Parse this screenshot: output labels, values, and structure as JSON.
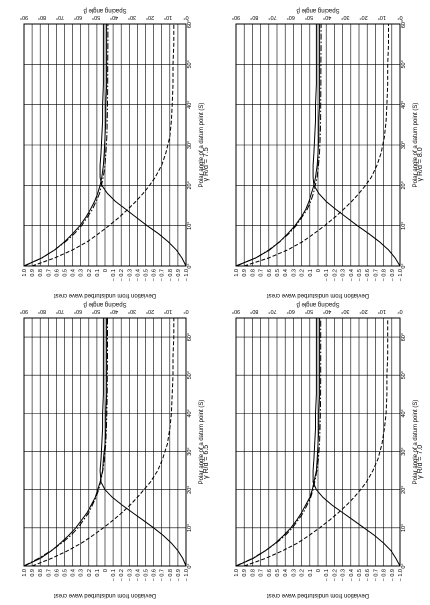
{
  "figure": {
    "y_axis_label": "Deviation from undisturbed wave crest",
    "x_axis_label": "Polar angle of a datum point (S)",
    "y2_axis_label": "Spacing angle β",
    "y_ticks": [
      "1.0",
      "0.9",
      "0.8",
      "0.7",
      "0.6",
      "0.5",
      "0.4",
      "0.3",
      "0.2",
      "0.1",
      "0",
      "− 0.1",
      "− 0.2",
      "− 0.3",
      "− 0.4",
      "− 0.5",
      "− 0.6",
      "− 0.7",
      "− 0.8",
      "− 0.9",
      "− 1.0"
    ],
    "x_ticks": [
      "0°",
      "10°",
      "20°",
      "30°",
      "40°",
      "50°",
      "60°"
    ],
    "y2_ticks": [
      "0°",
      "10°",
      "20°",
      "30°",
      "40°",
      "50°",
      "60°",
      "70°",
      "80°",
      "90°"
    ]
  },
  "chart_data": [
    {
      "type": "line",
      "panel_title": "γ R/d = 7.5",
      "x": [
        0,
        2,
        4,
        6,
        8,
        10,
        12,
        14,
        16,
        18,
        20,
        22,
        25,
        28,
        32,
        36,
        40,
        45,
        50,
        55,
        60
      ],
      "xlim": [
        0,
        60
      ],
      "ylim": [
        -1.0,
        1.0
      ],
      "y2lim": [
        0,
        90
      ],
      "series": [
        {
          "style": "solid",
          "values": [
            1.0,
            0.78,
            0.62,
            0.5,
            0.4,
            0.31,
            0.24,
            0.18,
            0.13,
            0.09,
            0.06,
            0.04,
            0.02,
            0.01,
            0.0,
            -0.01,
            -0.01,
            -0.02,
            -0.02,
            -0.02,
            -0.02
          ]
        },
        {
          "style": "dashed",
          "values": [
            0.9,
            0.62,
            0.4,
            0.22,
            0.08,
            -0.05,
            -0.17,
            -0.28,
            -0.38,
            -0.47,
            -0.55,
            -0.62,
            -0.7,
            -0.75,
            -0.8,
            -0.82,
            -0.83,
            -0.84,
            -0.84,
            -0.85,
            -0.85
          ]
        },
        {
          "style": "solid",
          "values": [
            -1.0,
            -0.95,
            -0.88,
            -0.78,
            -0.66,
            -0.52,
            -0.39,
            -0.26,
            -0.13,
            -0.03,
            0.04,
            0.06,
            0.06,
            0.05,
            0.04,
            0.03,
            0.03,
            0.02,
            0.02,
            0.02,
            0.02
          ]
        },
        {
          "style": "dash-dot",
          "axis": "y2",
          "values": [
            90,
            80,
            73,
            67,
            62,
            58,
            55,
            52,
            50,
            48,
            47,
            46,
            45,
            44.5,
            44,
            43.8,
            43.6,
            43.5,
            43.5,
            43.4,
            43.4
          ]
        }
      ]
    },
    {
      "type": "line",
      "panel_title": "γ R/d = 8.0",
      "x": [
        0,
        2,
        4,
        6,
        8,
        10,
        12,
        14,
        16,
        18,
        20,
        22,
        25,
        28,
        32,
        36,
        40,
        45,
        50,
        55,
        60
      ],
      "xlim": [
        0,
        60
      ],
      "ylim": [
        -1.0,
        1.0
      ],
      "y2lim": [
        0,
        90
      ],
      "series": [
        {
          "style": "solid",
          "values": [
            1.0,
            0.76,
            0.59,
            0.47,
            0.37,
            0.28,
            0.21,
            0.15,
            0.11,
            0.08,
            0.05,
            0.03,
            0.01,
            0.0,
            -0.01,
            -0.01,
            -0.02,
            -0.02,
            -0.02,
            -0.02,
            -0.02
          ]
        },
        {
          "style": "dashed",
          "values": [
            0.9,
            0.6,
            0.37,
            0.19,
            0.05,
            -0.08,
            -0.2,
            -0.31,
            -0.41,
            -0.5,
            -0.58,
            -0.65,
            -0.72,
            -0.77,
            -0.81,
            -0.83,
            -0.84,
            -0.85,
            -0.85,
            -0.86,
            -0.86
          ]
        },
        {
          "style": "solid",
          "values": [
            -1.0,
            -0.94,
            -0.86,
            -0.75,
            -0.62,
            -0.48,
            -0.35,
            -0.22,
            -0.1,
            -0.01,
            0.05,
            0.06,
            0.06,
            0.05,
            0.04,
            0.03,
            0.03,
            0.02,
            0.02,
            0.02,
            0.02
          ]
        },
        {
          "style": "dash-dot",
          "axis": "y2",
          "values": [
            90,
            79,
            72,
            66,
            61,
            57,
            54,
            51,
            49,
            47.5,
            46.5,
            45.5,
            44.7,
            44.2,
            43.8,
            43.6,
            43.5,
            43.4,
            43.4,
            43.3,
            43.3
          ]
        }
      ]
    },
    {
      "type": "line",
      "panel_title": "γ R/d = 6.5",
      "x": [
        0,
        2,
        4,
        6,
        8,
        10,
        12,
        14,
        16,
        18,
        20,
        22,
        25,
        28,
        32,
        36,
        40,
        45,
        50,
        55,
        60,
        65
      ],
      "xlim": [
        0,
        65
      ],
      "ylim": [
        -1.0,
        1.0
      ],
      "y2lim": [
        0,
        90
      ],
      "series": [
        {
          "style": "solid",
          "values": [
            1.0,
            0.8,
            0.66,
            0.55,
            0.45,
            0.36,
            0.29,
            0.22,
            0.17,
            0.12,
            0.09,
            0.06,
            0.03,
            0.02,
            0.0,
            -0.01,
            -0.01,
            -0.02,
            -0.02,
            -0.02,
            -0.02,
            -0.02
          ]
        },
        {
          "style": "dashed",
          "values": [
            0.9,
            0.66,
            0.46,
            0.29,
            0.15,
            0.02,
            -0.1,
            -0.21,
            -0.31,
            -0.4,
            -0.48,
            -0.56,
            -0.65,
            -0.71,
            -0.77,
            -0.8,
            -0.82,
            -0.83,
            -0.84,
            -0.84,
            -0.85,
            -0.85
          ]
        },
        {
          "style": "solid",
          "values": [
            -1.0,
            -0.96,
            -0.9,
            -0.82,
            -0.72,
            -0.6,
            -0.47,
            -0.34,
            -0.21,
            -0.09,
            0.0,
            0.05,
            0.06,
            0.05,
            0.04,
            0.03,
            0.03,
            0.02,
            0.02,
            0.02,
            0.02,
            0.02
          ]
        },
        {
          "style": "dash-dot",
          "axis": "y2",
          "values": [
            90,
            82,
            75,
            69,
            64,
            60,
            57,
            54,
            52,
            50,
            48.5,
            47.5,
            46.2,
            45.3,
            44.6,
            44.2,
            44.0,
            43.8,
            43.7,
            43.6,
            43.6,
            43.6
          ]
        }
      ]
    },
    {
      "type": "line",
      "panel_title": "γ R/d = 7.0",
      "x": [
        0,
        2,
        4,
        6,
        8,
        10,
        12,
        14,
        16,
        18,
        20,
        22,
        25,
        28,
        32,
        36,
        40,
        45,
        50,
        55,
        60,
        65
      ],
      "xlim": [
        0,
        65
      ],
      "ylim": [
        -1.0,
        1.0
      ],
      "y2lim": [
        0,
        90
      ],
      "series": [
        {
          "style": "solid",
          "values": [
            1.0,
            0.79,
            0.64,
            0.52,
            0.42,
            0.33,
            0.26,
            0.2,
            0.15,
            0.1,
            0.07,
            0.05,
            0.02,
            0.01,
            0.0,
            -0.01,
            -0.01,
            -0.02,
            -0.02,
            -0.02,
            -0.02,
            -0.02
          ]
        },
        {
          "style": "dashed",
          "values": [
            0.9,
            0.64,
            0.43,
            0.25,
            0.11,
            -0.02,
            -0.14,
            -0.25,
            -0.35,
            -0.44,
            -0.52,
            -0.59,
            -0.67,
            -0.73,
            -0.78,
            -0.81,
            -0.83,
            -0.84,
            -0.84,
            -0.85,
            -0.85,
            -0.85
          ]
        },
        {
          "style": "solid",
          "values": [
            -1.0,
            -0.95,
            -0.89,
            -0.8,
            -0.69,
            -0.56,
            -0.43,
            -0.3,
            -0.17,
            -0.06,
            0.02,
            0.06,
            0.06,
            0.05,
            0.04,
            0.03,
            0.03,
            0.02,
            0.02,
            0.02,
            0.02,
            0.02
          ]
        },
        {
          "style": "dash-dot",
          "axis": "y2",
          "values": [
            90,
            81,
            74,
            68,
            63,
            59,
            56,
            53,
            51,
            49,
            47.7,
            46.8,
            45.6,
            44.8,
            44.2,
            43.9,
            43.7,
            43.6,
            43.5,
            43.5,
            43.5,
            43.5
          ]
        }
      ]
    }
  ]
}
